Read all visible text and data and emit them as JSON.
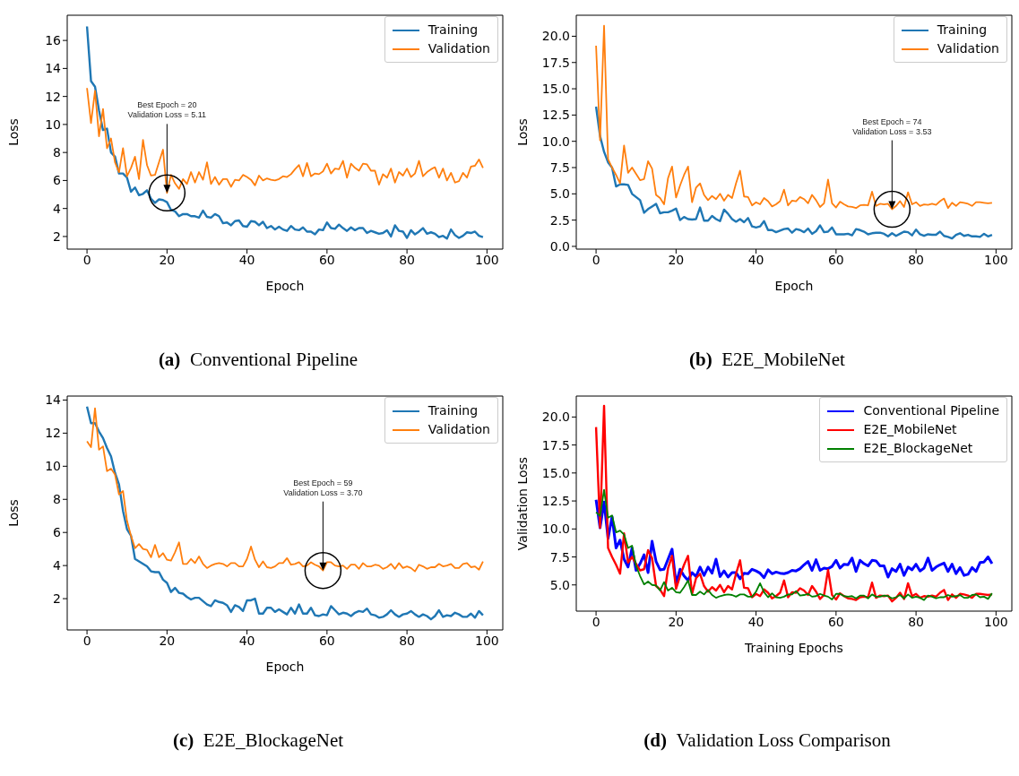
{
  "chart_data": [
    {
      "type": "line",
      "title": "(a) Conventional Pipeline",
      "xlabel": "Epoch",
      "ylabel": "Loss",
      "legend": "top right",
      "xlim": [
        -4.95,
        103.95
      ],
      "xticks": [
        0,
        20,
        40,
        60,
        80,
        100
      ],
      "ylim": [
        1.1,
        17.8
      ],
      "yticks": [
        2,
        4,
        6,
        8,
        10,
        12,
        14,
        16
      ],
      "x": [
        0,
        1,
        2,
        3,
        4,
        5,
        6,
        7,
        8,
        9,
        10,
        11,
        12,
        13,
        14,
        15,
        16,
        17,
        18,
        19,
        20,
        21,
        22,
        23,
        24,
        25,
        26,
        27,
        28,
        29,
        30,
        31,
        32,
        33,
        34,
        35,
        36,
        37,
        38,
        39,
        40,
        41,
        42,
        43,
        44,
        45,
        46,
        47,
        48,
        49,
        50,
        51,
        52,
        53,
        54,
        55,
        56,
        57,
        58,
        59,
        60,
        61,
        62,
        63,
        64,
        65,
        66,
        67,
        68,
        69,
        70,
        71,
        72,
        73,
        74,
        75,
        76,
        77,
        78,
        79,
        80,
        81,
        82,
        83,
        84,
        85,
        86,
        87,
        88,
        89,
        90,
        91,
        92,
        93,
        94,
        95,
        96,
        97,
        98,
        99
      ],
      "series": [
        {
          "name": "Training",
          "color": "#1f77b4",
          "values": [
            17.0,
            13.1,
            12.7,
            11.0,
            9.6,
            9.7,
            8.0,
            7.7,
            6.5,
            6.5,
            6.2,
            5.2,
            5.5,
            4.95,
            5.05,
            5.3,
            4.7,
            4.4,
            4.65,
            4.6,
            4.45,
            3.9,
            3.8,
            3.45,
            3.6,
            3.6,
            3.45,
            3.45,
            3.35,
            3.85,
            3.4,
            3.35,
            3.6,
            3.45,
            2.95,
            3.0,
            2.8,
            3.1,
            3.15,
            2.75,
            2.7,
            3.1,
            3.05,
            2.8,
            3.05,
            2.6,
            2.75,
            2.5,
            2.7,
            2.5,
            2.4,
            2.75,
            2.5,
            2.45,
            2.65,
            2.35,
            2.35,
            2.15,
            2.5,
            2.45,
            3.0,
            2.6,
            2.55,
            2.85,
            2.6,
            2.4,
            2.65,
            2.45,
            2.6,
            2.6,
            2.25,
            2.4,
            2.3,
            2.2,
            2.25,
            2.45,
            2.0,
            2.8,
            2.4,
            2.35,
            1.9,
            2.45,
            2.15,
            2.35,
            2.6,
            2.2,
            2.3,
            2.2,
            1.95,
            2.05,
            1.85,
            2.5,
            2.1,
            1.9,
            2.05,
            2.3,
            2.25,
            2.35,
            2.05,
            1.95
          ]
        },
        {
          "name": "Validation",
          "color": "#ff7f0e",
          "values": [
            12.6,
            10.1,
            12.4,
            9.15,
            11.1,
            8.3,
            9.0,
            7.3,
            6.6,
            8.3,
            6.3,
            6.9,
            7.7,
            6.1,
            8.9,
            7.1,
            6.35,
            6.4,
            7.3,
            8.2,
            5.11,
            6.4,
            5.8,
            5.4,
            6.1,
            5.75,
            6.6,
            5.85,
            6.6,
            6.05,
            7.3,
            5.75,
            6.25,
            5.7,
            6.1,
            6.1,
            5.55,
            6.05,
            6.0,
            6.4,
            6.25,
            6.05,
            5.65,
            6.35,
            6.0,
            6.15,
            6.05,
            6.0,
            6.1,
            6.3,
            6.25,
            6.45,
            6.8,
            7.1,
            6.3,
            7.25,
            6.3,
            6.5,
            6.45,
            6.65,
            7.2,
            6.5,
            6.85,
            6.8,
            7.4,
            6.2,
            7.2,
            6.9,
            6.7,
            7.2,
            7.15,
            6.7,
            6.7,
            5.7,
            6.45,
            6.2,
            6.85,
            5.85,
            6.6,
            6.35,
            6.85,
            6.25,
            6.5,
            7.4,
            6.3,
            6.6,
            6.8,
            6.95,
            6.2,
            6.85,
            6.0,
            6.55,
            5.85,
            5.95,
            6.55,
            6.2,
            7.0,
            7.05,
            7.5,
            6.9
          ]
        }
      ],
      "annotations": [
        {
          "text": "Best Epoch = 20\nValidation Loss = 5.11",
          "x": 20,
          "y": 5.11
        }
      ]
    },
    {
      "type": "line",
      "title": "(b) E2E_MobileNet",
      "xlabel": "Epoch",
      "ylabel": "Loss",
      "legend": "top right",
      "xlim": [
        -4.95,
        103.95
      ],
      "xticks": [
        0,
        20,
        40,
        60,
        80,
        100
      ],
      "ylim": [
        -0.26,
        22.0
      ],
      "yticks": [
        {
          "value": 0,
          "label": "0.0"
        },
        2.5,
        {
          "value": 5,
          "label": "5.0"
        },
        7.5,
        {
          "value": 10,
          "label": "10.0"
        },
        12.5,
        {
          "value": 15,
          "label": "15.0"
        },
        17.5,
        {
          "value": 20,
          "label": "20.0"
        }
      ],
      "x": [
        0,
        1,
        2,
        3,
        4,
        5,
        6,
        7,
        8,
        9,
        10,
        11,
        12,
        13,
        14,
        15,
        16,
        17,
        18,
        19,
        20,
        21,
        22,
        23,
        24,
        25,
        26,
        27,
        28,
        29,
        30,
        31,
        32,
        33,
        34,
        35,
        36,
        37,
        38,
        39,
        40,
        41,
        42,
        43,
        44,
        45,
        46,
        47,
        48,
        49,
        50,
        51,
        52,
        53,
        54,
        55,
        56,
        57,
        58,
        59,
        60,
        61,
        62,
        63,
        64,
        65,
        66,
        67,
        68,
        69,
        70,
        71,
        72,
        73,
        74,
        75,
        76,
        77,
        78,
        79,
        80,
        81,
        82,
        83,
        84,
        85,
        86,
        87,
        88,
        89,
        90,
        91,
        92,
        93,
        94,
        95,
        96,
        97,
        98,
        99
      ],
      "series": [
        {
          "name": "Training",
          "color": "#1f77b4",
          "values": [
            13.3,
            10.5,
            9.0,
            8.0,
            7.5,
            5.7,
            5.9,
            5.9,
            5.85,
            5.0,
            4.7,
            4.4,
            3.2,
            3.55,
            3.8,
            4.05,
            3.15,
            3.25,
            3.25,
            3.4,
            3.6,
            2.5,
            2.8,
            2.6,
            2.55,
            2.6,
            3.7,
            2.45,
            2.45,
            2.9,
            2.6,
            2.4,
            3.5,
            3.1,
            2.6,
            2.35,
            2.6,
            2.3,
            2.7,
            1.9,
            1.8,
            1.9,
            2.4,
            1.55,
            1.55,
            1.35,
            1.5,
            1.65,
            1.7,
            1.3,
            1.65,
            1.55,
            1.35,
            1.7,
            1.2,
            1.45,
            2.0,
            1.35,
            1.4,
            1.8,
            1.15,
            1.15,
            1.15,
            1.2,
            1.05,
            1.65,
            1.55,
            1.4,
            1.15,
            1.25,
            1.3,
            1.3,
            1.2,
            0.95,
            1.25,
            1.0,
            1.2,
            1.4,
            1.35,
            1.05,
            1.6,
            1.15,
            1.0,
            1.15,
            1.1,
            1.1,
            1.4,
            1.0,
            0.9,
            0.75,
            1.1,
            1.25,
            1.0,
            1.1,
            0.95,
            0.95,
            0.9,
            1.2,
            0.95,
            1.1
          ]
        },
        {
          "name": "Validation",
          "color": "#ff7f0e",
          "values": [
            19.1,
            10.1,
            21.0,
            8.3,
            7.5,
            6.8,
            6.0,
            9.6,
            7.0,
            7.5,
            6.9,
            6.3,
            6.4,
            8.1,
            7.4,
            4.9,
            4.6,
            4.0,
            6.5,
            7.6,
            4.65,
            5.8,
            6.8,
            7.6,
            4.2,
            5.6,
            6.0,
            4.9,
            4.4,
            4.8,
            4.5,
            5.0,
            4.35,
            4.9,
            4.6,
            6.0,
            7.2,
            4.75,
            4.7,
            3.9,
            4.2,
            4.0,
            4.6,
            4.3,
            3.8,
            4.0,
            4.3,
            5.4,
            3.9,
            4.35,
            4.3,
            4.7,
            4.5,
            4.1,
            4.9,
            4.4,
            3.75,
            4.1,
            6.35,
            4.1,
            3.7,
            4.25,
            4.0,
            3.8,
            3.75,
            3.65,
            3.9,
            3.95,
            3.9,
            5.2,
            3.85,
            4.05,
            4.0,
            4.05,
            3.53,
            3.85,
            4.3,
            3.75,
            5.15,
            4.0,
            4.2,
            3.85,
            4.0,
            3.95,
            4.05,
            3.95,
            4.3,
            4.55,
            3.65,
            4.15,
            3.85,
            4.2,
            4.15,
            4.05,
            3.85,
            4.2,
            4.2,
            4.15,
            4.1,
            4.15
          ]
        }
      ],
      "annotations": [
        {
          "text": "Best Epoch = 74\nValidation Loss = 3.53",
          "x": 74,
          "y": 3.53
        }
      ]
    },
    {
      "type": "line",
      "title": "(c) E2E_BlockageNet",
      "xlabel": "Epoch",
      "ylabel": "Loss",
      "legend": "top right",
      "xlim": [
        -4.95,
        103.95
      ],
      "xticks": [
        0,
        20,
        40,
        60,
        80,
        100
      ],
      "ylim": [
        0.11,
        14.24
      ],
      "yticks": [
        2,
        4,
        6,
        8,
        10,
        12,
        14
      ],
      "x": [
        0,
        1,
        2,
        3,
        4,
        5,
        6,
        7,
        8,
        9,
        10,
        11,
        12,
        13,
        14,
        15,
        16,
        17,
        18,
        19,
        20,
        21,
        22,
        23,
        24,
        25,
        26,
        27,
        28,
        29,
        30,
        31,
        32,
        33,
        34,
        35,
        36,
        37,
        38,
        39,
        40,
        41,
        42,
        43,
        44,
        45,
        46,
        47,
        48,
        49,
        50,
        51,
        52,
        53,
        54,
        55,
        56,
        57,
        58,
        59,
        60,
        61,
        62,
        63,
        64,
        65,
        66,
        67,
        68,
        69,
        70,
        71,
        72,
        73,
        74,
        75,
        76,
        77,
        78,
        79,
        80,
        81,
        82,
        83,
        84,
        85,
        86,
        87,
        88,
        89,
        90,
        91,
        92,
        93,
        94,
        95,
        96,
        97,
        98,
        99
      ],
      "series": [
        {
          "name": "Training",
          "color": "#1f77b4",
          "values": [
            13.6,
            12.6,
            12.6,
            12.1,
            11.7,
            11.1,
            10.6,
            9.6,
            8.9,
            7.3,
            6.2,
            5.8,
            4.4,
            4.25,
            4.1,
            3.95,
            3.65,
            3.6,
            3.6,
            3.15,
            2.95,
            2.4,
            2.65,
            2.35,
            2.3,
            2.1,
            1.95,
            2.05,
            2.05,
            1.85,
            1.65,
            1.55,
            1.9,
            1.8,
            1.75,
            1.6,
            1.2,
            1.6,
            1.5,
            1.25,
            1.9,
            1.9,
            2.0,
            1.1,
            1.1,
            1.45,
            1.45,
            1.2,
            1.35,
            1.2,
            1.05,
            1.45,
            1.1,
            1.65,
            1.1,
            1.1,
            1.45,
            1.0,
            0.95,
            1.05,
            1.0,
            1.55,
            1.3,
            1.05,
            1.15,
            1.1,
            0.95,
            1.15,
            1.25,
            1.2,
            1.4,
            1.05,
            1.0,
            0.85,
            0.9,
            1.05,
            1.3,
            1.05,
            0.9,
            1.05,
            1.1,
            1.25,
            1.05,
            0.9,
            1.05,
            0.95,
            0.75,
            0.95,
            1.3,
            0.9,
            1.0,
            0.95,
            1.15,
            1.05,
            0.9,
            0.9,
            1.1,
            0.85,
            1.25,
            1.0
          ]
        },
        {
          "name": "Validation",
          "color": "#ff7f0e",
          "values": [
            11.5,
            11.15,
            13.5,
            11.0,
            11.2,
            9.7,
            9.85,
            9.5,
            8.3,
            8.5,
            6.7,
            5.8,
            5.05,
            5.3,
            5.0,
            4.95,
            4.5,
            5.25,
            4.5,
            4.75,
            4.35,
            4.3,
            4.8,
            5.4,
            4.1,
            4.1,
            4.4,
            4.15,
            4.55,
            4.1,
            3.85,
            4.0,
            4.1,
            4.15,
            4.1,
            3.95,
            4.15,
            4.15,
            3.95,
            3.95,
            4.4,
            5.15,
            4.35,
            3.9,
            4.25,
            3.9,
            3.85,
            3.95,
            4.15,
            4.15,
            4.45,
            4.05,
            4.1,
            4.2,
            3.95,
            4.0,
            4.2,
            4.05,
            3.95,
            3.7,
            4.2,
            4.2,
            4.0,
            3.95,
            4.0,
            3.8,
            4.05,
            4.05,
            3.8,
            4.15,
            3.95,
            3.95,
            4.05,
            4.0,
            3.8,
            3.9,
            4.1,
            3.8,
            4.15,
            3.85,
            3.95,
            3.85,
            3.65,
            4.05,
            3.95,
            3.8,
            3.9,
            3.9,
            4.1,
            3.95,
            4.0,
            4.1,
            3.85,
            3.85,
            4.1,
            4.15,
            3.9,
            3.95,
            3.75,
            4.25
          ]
        }
      ],
      "annotations": [
        {
          "text": "Best Epoch = 59\nValidation Loss = 3.70",
          "x": 59,
          "y": 3.7
        }
      ]
    },
    {
      "type": "line",
      "title": "(d) Validation Loss Comparison",
      "xlabel": "Training Epochs",
      "ylabel": "Validation Loss",
      "legend": "top right",
      "xlim": [
        -4.95,
        103.95
      ],
      "xticks": [
        0,
        20,
        40,
        60,
        80,
        100
      ],
      "ylim": [
        2.66,
        21.87
      ],
      "yticks": [
        {
          "value": 5,
          "label": "5.0"
        },
        7.5,
        {
          "value": 10,
          "label": "10.0"
        },
        12.5,
        {
          "value": 15,
          "label": "15.0"
        },
        17.5,
        {
          "value": 20,
          "label": "20.0"
        }
      ],
      "x": [
        0,
        1,
        2,
        3,
        4,
        5,
        6,
        7,
        8,
        9,
        10,
        11,
        12,
        13,
        14,
        15,
        16,
        17,
        18,
        19,
        20,
        21,
        22,
        23,
        24,
        25,
        26,
        27,
        28,
        29,
        30,
        31,
        32,
        33,
        34,
        35,
        36,
        37,
        38,
        39,
        40,
        41,
        42,
        43,
        44,
        45,
        46,
        47,
        48,
        49,
        50,
        51,
        52,
        53,
        54,
        55,
        56,
        57,
        58,
        59,
        60,
        61,
        62,
        63,
        64,
        65,
        66,
        67,
        68,
        69,
        70,
        71,
        72,
        73,
        74,
        75,
        76,
        77,
        78,
        79,
        80,
        81,
        82,
        83,
        84,
        85,
        86,
        87,
        88,
        89,
        90,
        91,
        92,
        93,
        94,
        95,
        96,
        97,
        98,
        99
      ],
      "series": [
        {
          "name": "Conventional Pipeline",
          "color": "#0000ff",
          "values": [
            12.6,
            10.1,
            12.4,
            9.15,
            11.1,
            8.3,
            9.0,
            7.3,
            6.6,
            8.3,
            6.3,
            6.9,
            7.7,
            6.1,
            8.9,
            7.1,
            6.35,
            6.4,
            7.3,
            8.2,
            5.11,
            6.4,
            5.8,
            5.4,
            6.1,
            5.75,
            6.6,
            5.85,
            6.6,
            6.05,
            7.3,
            5.75,
            6.25,
            5.7,
            6.1,
            6.1,
            5.55,
            6.05,
            6.0,
            6.4,
            6.25,
            6.05,
            5.65,
            6.35,
            6.0,
            6.15,
            6.05,
            6.0,
            6.1,
            6.3,
            6.25,
            6.45,
            6.8,
            7.1,
            6.3,
            7.25,
            6.3,
            6.5,
            6.45,
            6.65,
            7.2,
            6.5,
            6.85,
            6.8,
            7.4,
            6.2,
            7.2,
            6.9,
            6.7,
            7.2,
            7.15,
            6.7,
            6.7,
            5.7,
            6.45,
            6.2,
            6.85,
            5.85,
            6.6,
            6.35,
            6.85,
            6.25,
            6.5,
            7.4,
            6.3,
            6.6,
            6.8,
            6.95,
            6.2,
            6.85,
            6.0,
            6.55,
            5.85,
            5.95,
            6.55,
            6.2,
            7.0,
            7.05,
            7.5,
            6.9
          ]
        },
        {
          "name": "E2E_MobileNet",
          "color": "#ff0000",
          "values": [
            19.1,
            10.1,
            21.0,
            8.3,
            7.5,
            6.8,
            6.0,
            9.6,
            7.0,
            7.5,
            6.9,
            6.3,
            6.4,
            8.1,
            7.4,
            4.9,
            4.6,
            4.0,
            6.5,
            7.6,
            4.65,
            5.8,
            6.8,
            7.6,
            4.2,
            5.6,
            6.0,
            4.9,
            4.4,
            4.8,
            4.5,
            5.0,
            4.35,
            4.9,
            4.6,
            6.0,
            7.2,
            4.75,
            4.7,
            3.9,
            4.2,
            4.0,
            4.6,
            4.3,
            3.8,
            4.0,
            4.3,
            5.4,
            3.9,
            4.35,
            4.3,
            4.7,
            4.5,
            4.1,
            4.9,
            4.4,
            3.75,
            4.1,
            6.35,
            4.1,
            3.7,
            4.25,
            4.0,
            3.8,
            3.75,
            3.65,
            3.9,
            3.95,
            3.9,
            5.2,
            3.85,
            4.05,
            4.0,
            4.05,
            3.53,
            3.85,
            4.3,
            3.75,
            5.15,
            4.0,
            4.2,
            3.85,
            4.0,
            3.95,
            4.05,
            3.95,
            4.3,
            4.55,
            3.65,
            4.15,
            3.85,
            4.2,
            4.15,
            4.05,
            3.85,
            4.2,
            4.2,
            4.15,
            4.1,
            4.15
          ]
        },
        {
          "name": "E2E_BlockageNet",
          "color": "#008000",
          "values": [
            11.5,
            11.15,
            13.5,
            11.0,
            11.2,
            9.7,
            9.85,
            9.5,
            8.3,
            8.5,
            6.7,
            5.8,
            5.05,
            5.3,
            5.0,
            4.95,
            4.5,
            5.25,
            4.5,
            4.75,
            4.35,
            4.3,
            4.8,
            5.4,
            4.1,
            4.1,
            4.4,
            4.15,
            4.55,
            4.1,
            3.85,
            4.0,
            4.1,
            4.15,
            4.1,
            3.95,
            4.15,
            4.15,
            3.95,
            3.95,
            4.4,
            5.15,
            4.35,
            3.9,
            4.25,
            3.9,
            3.85,
            3.95,
            4.15,
            4.15,
            4.45,
            4.05,
            4.1,
            4.2,
            3.95,
            4.0,
            4.2,
            4.05,
            3.95,
            3.7,
            4.2,
            4.2,
            4.0,
            3.95,
            4.0,
            3.8,
            4.05,
            4.05,
            3.8,
            4.15,
            3.95,
            3.95,
            4.05,
            4.0,
            3.8,
            3.9,
            4.1,
            3.8,
            4.15,
            3.85,
            3.95,
            3.85,
            3.65,
            4.05,
            3.95,
            3.8,
            3.9,
            3.9,
            4.1,
            3.95,
            4.0,
            4.1,
            3.85,
            3.85,
            4.1,
            4.15,
            3.9,
            3.95,
            3.75,
            4.25
          ]
        }
      ]
    }
  ]
}
